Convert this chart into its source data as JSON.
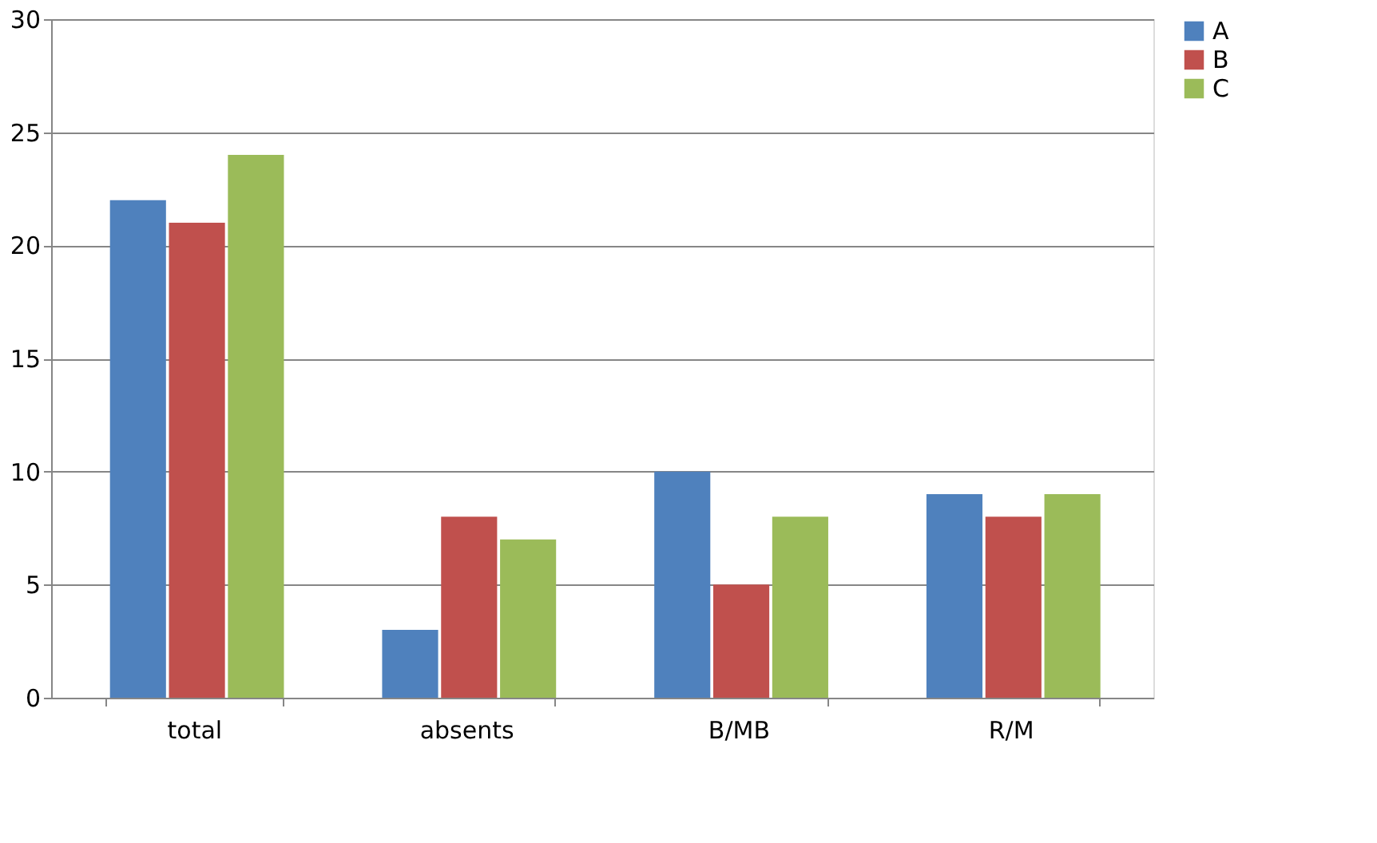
{
  "chart_data": {
    "type": "bar",
    "categories": [
      "total",
      "absents",
      "B/MB",
      "R/M"
    ],
    "series": [
      {
        "name": "A",
        "color": "#4f81bd",
        "values": [
          22,
          3,
          10,
          9
        ]
      },
      {
        "name": "B",
        "color": "#c0504d",
        "values": [
          21,
          8,
          5,
          8
        ]
      },
      {
        "name": "C",
        "color": "#9bbb59",
        "values": [
          24,
          7,
          8,
          9
        ]
      }
    ],
    "ylim": [
      0,
      30
    ],
    "yticks": [
      0,
      5,
      10,
      15,
      20,
      25,
      30
    ],
    "grid": "y",
    "legend": "right"
  }
}
